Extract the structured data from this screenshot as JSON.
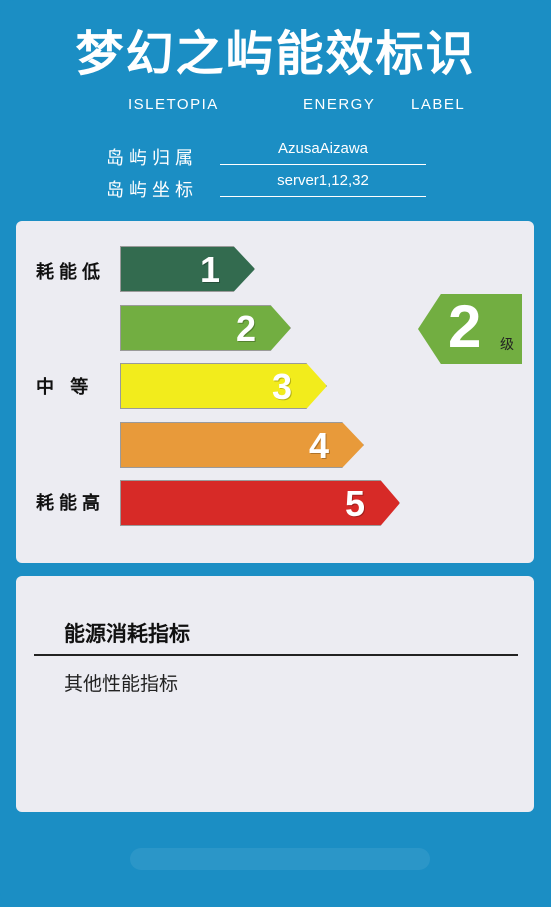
{
  "header": {
    "title": "梦幻之屿能效标识",
    "subtitle_1": "ISLETOPIA",
    "subtitle_2": "ENERGY",
    "subtitle_3": "LABEL"
  },
  "info": {
    "owner_label": "岛屿归属",
    "owner_value": "AzusaAizawa",
    "coord_label": "岛屿坐标",
    "coord_value": "server1,12,32"
  },
  "grades": {
    "label_low": "耗能低",
    "label_mid": "中 等",
    "label_high": "耗能高",
    "levels": [
      "1",
      "2",
      "3",
      "4",
      "5"
    ],
    "colors": [
      "#336b4f",
      "#72ae41",
      "#f2ec1c",
      "#e89a3a",
      "#d72a27"
    ]
  },
  "rating": {
    "value": "2",
    "unit": "级",
    "color": "#72ae41"
  },
  "consumption": {
    "title": "能源消耗指标",
    "item": "其他性能指标"
  }
}
